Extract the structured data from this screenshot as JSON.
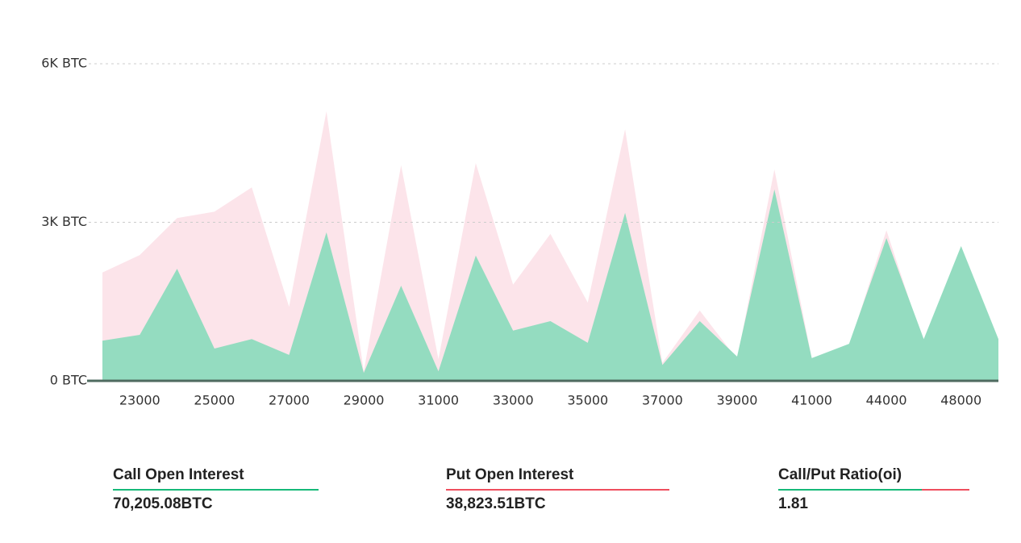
{
  "chart_data": {
    "type": "area",
    "categories": [
      null,
      "23000",
      null,
      "25000",
      null,
      "27000",
      null,
      "29000",
      null,
      "31000",
      null,
      "33000",
      null,
      "35000",
      null,
      "37000",
      null,
      "39000",
      null,
      "41000",
      null,
      "44000",
      null,
      "48000",
      null
    ],
    "series": [
      {
        "color": "#fce4ea",
        "values": [
          2050,
          2380,
          3080,
          3200,
          3660,
          1400,
          5100,
          180,
          4080,
          410,
          4120,
          1820,
          2780,
          1480,
          4760,
          340,
          1330,
          410,
          4000,
          430,
          650,
          2850,
          700,
          2400,
          700
        ]
      },
      {
        "color": "#94dcc0",
        "values": [
          760,
          870,
          2120,
          610,
          790,
          490,
          2810,
          150,
          1800,
          180,
          2370,
          950,
          1130,
          720,
          3180,
          300,
          1130,
          460,
          3620,
          430,
          700,
          2700,
          790,
          2550,
          790
        ]
      }
    ],
    "ylim": [
      0,
      6000
    ],
    "yticks": [
      {
        "value": 0,
        "label": "0 BTC"
      },
      {
        "value": 3000,
        "label": "3K BTC"
      },
      {
        "value": 6000,
        "label": "6K BTC"
      }
    ],
    "grid": true
  },
  "stats": [
    {
      "label": "Call Open Interest",
      "value": "70,205.08BTC"
    },
    {
      "label": "Put Open Interest",
      "value": "38,823.51BTC"
    },
    {
      "label": "Call/Put Ratio(oi)",
      "value": "1.81"
    }
  ]
}
